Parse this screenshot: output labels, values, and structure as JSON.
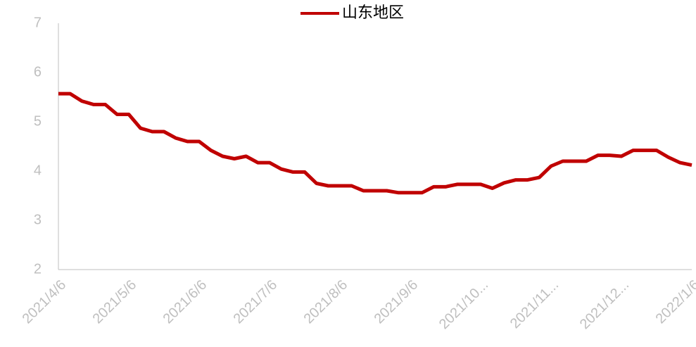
{
  "chart_data": {
    "type": "line",
    "categories": [
      "2021/4/6",
      null,
      null,
      null,
      null,
      null,
      "2021/5/6",
      null,
      null,
      null,
      null,
      null,
      "2021/6/6",
      null,
      null,
      null,
      null,
      null,
      "2021/7/6",
      null,
      null,
      null,
      null,
      null,
      "2021/8/6",
      null,
      null,
      null,
      null,
      null,
      "2021/9/6",
      null,
      null,
      null,
      null,
      null,
      "2021/10...",
      null,
      null,
      null,
      null,
      null,
      "2021/11...",
      null,
      null,
      null,
      null,
      null,
      "2021/12...",
      null,
      null,
      null,
      null,
      null,
      "2022/1/6"
    ],
    "series": [
      {
        "name": "山东地区",
        "color": "#c00000",
        "values": [
          5.57,
          5.57,
          5.42,
          5.35,
          5.35,
          5.15,
          5.15,
          4.87,
          4.8,
          4.8,
          4.67,
          4.6,
          4.6,
          4.42,
          4.3,
          4.25,
          4.3,
          4.17,
          4.17,
          4.04,
          3.98,
          3.98,
          3.75,
          3.7,
          3.7,
          3.7,
          3.6,
          3.6,
          3.6,
          3.56,
          3.56,
          3.56,
          3.68,
          3.68,
          3.73,
          3.73,
          3.73,
          3.65,
          3.76,
          3.82,
          3.82,
          3.87,
          4.1,
          4.2,
          4.2,
          4.2,
          4.32,
          4.32,
          4.3,
          4.42,
          4.42,
          4.42,
          4.28,
          4.17,
          4.12
        ]
      }
    ],
    "ylim": [
      2,
      7
    ],
    "yticks": [
      2,
      3,
      4,
      5,
      6,
      7
    ],
    "grid": false,
    "legend": "top"
  }
}
